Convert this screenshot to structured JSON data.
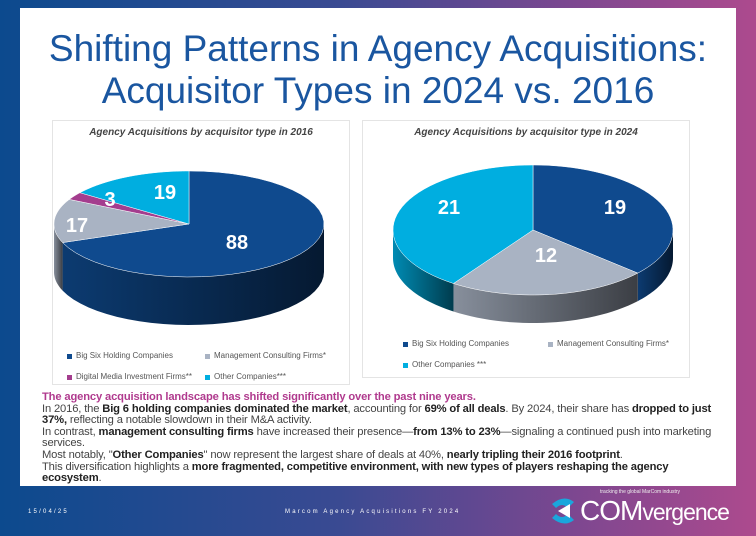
{
  "title": "Shifting Patterns in Agency Acquisitions: Acquisitor Types in 2024 vs. 2016",
  "chart_data": [
    {
      "type": "pie",
      "title": "Agency Acquisitions by acquisitor type in 2016",
      "categories": [
        "Big Six Holding Companies",
        "Management Consulting Firms*",
        "Digital Media Investment Firms**",
        "Other Companies***"
      ],
      "values": [
        88,
        17,
        3,
        19
      ],
      "colors": [
        "#0f4a8e",
        "#a9b3c3",
        "#a43d8e",
        "#00aee0"
      ],
      "legend": "bottom"
    },
    {
      "type": "pie",
      "title": "Agency Acquisitions by acquisitor type in 2024",
      "categories": [
        "Big Six Holding Companies",
        "Management Consulting Firms*",
        "Other Companies ***"
      ],
      "values": [
        19,
        12,
        21
      ],
      "colors": [
        "#0f4a8e",
        "#a9b3c3",
        "#00aee0"
      ],
      "legend": "bottom"
    }
  ],
  "body": {
    "lead": "The agency acquisition landscape has shifted significantly over the past nine years.",
    "p1": [
      "In 2016, the ",
      "Big 6 holding companies dominated the market",
      ", accounting for ",
      "69% of all deals",
      ". By 2024, their share has ",
      "dropped to just 37%,",
      " reflecting a notable slowdown in their M&A activity."
    ],
    "p2": [
      "In contrast, ",
      "management consulting firms",
      " have increased their presence—",
      "from 13% to 23%",
      "—signaling a continued push into marketing services."
    ],
    "p3": [
      "Most notably, \"",
      "Other Companies",
      "\" now represent the largest share of deals at 40%, ",
      "nearly tripling their 2016 footprint",
      "."
    ],
    "p4": [
      "This diversification highlights a ",
      "more fragmented, competitive environment, with new types of players reshaping the agency ecosystem",
      "."
    ]
  },
  "footer": {
    "date": "15/04/25",
    "center": "Marcom Agency Acquisitions FY 2024",
    "logo_tagline": "tracking the global MarCom industry",
    "logo_main": "COM",
    "logo_rest": "vergence"
  }
}
